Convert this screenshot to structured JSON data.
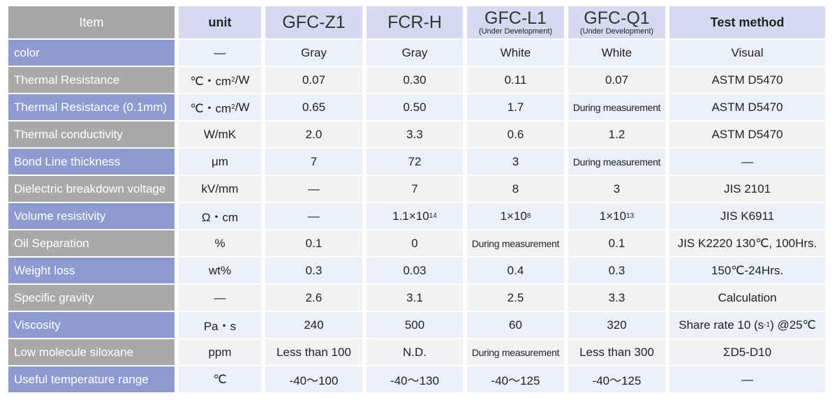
{
  "table": {
    "header": [
      {
        "text": "Item"
      },
      {
        "text": "unit"
      },
      {
        "text": "GFC-Z1"
      },
      {
        "text": "FCR-H"
      },
      {
        "text": "GFC-L1",
        "note": "(Under Development)"
      },
      {
        "text": "GFC-Q1",
        "note": "(Under Development)"
      },
      {
        "text": "Test method"
      }
    ],
    "rows": [
      [
        "color",
        "—",
        "Gray",
        "Gray",
        "White",
        "White",
        "Visual"
      ],
      [
        "Thermal Resistance",
        [
          "℃・cm",
          {
            "sup": "2"
          },
          "/W"
        ],
        "0.07",
        "0.30",
        "0.11",
        "0.07",
        "ASTM D5470"
      ],
      [
        "Thermal Resistance (0.1mm)",
        [
          "℃・cm",
          {
            "sup": "2"
          },
          "/W"
        ],
        "0.65",
        "0.50",
        "1.7",
        "During measurement",
        "ASTM D5470"
      ],
      [
        "Thermal conductivity",
        "W/mK",
        "2.0",
        "3.3",
        "0.6",
        "1.2",
        "ASTM D5470"
      ],
      [
        "Bond Line thickness",
        "μm",
        "7",
        "72",
        "3",
        "During measurement",
        "—"
      ],
      [
        "Dielectric breakdown voltage",
        "kV/mm",
        "—",
        "7",
        "8",
        "3",
        "JIS 2101"
      ],
      [
        "Volume resistivity",
        "Ω・cm",
        "—",
        [
          "1.1×10",
          {
            "sup": "14"
          }
        ],
        [
          "1×10",
          {
            "sup": "8"
          }
        ],
        [
          "1×10",
          {
            "sup": "13"
          }
        ],
        "JIS K6911"
      ],
      [
        "Oil Separation",
        "%",
        "0.1",
        "0",
        "During measurement",
        "0.1",
        "JIS K2220 130℃, 100Hrs."
      ],
      [
        "Weight loss",
        "wt%",
        "0.3",
        "0.03",
        "0.4",
        "0.3",
        "150℃-24Hrs."
      ],
      [
        "Specific gravity",
        "—",
        "2.6",
        "3.1",
        "2.5",
        "3.3",
        "Calculation"
      ],
      [
        "Viscosity",
        "Pa・s",
        "240",
        "500",
        "60",
        "320",
        [
          "Share rate 10 (s",
          {
            "sup": "-1"
          },
          ") @25℃"
        ]
      ],
      [
        "Low molecule siloxane",
        "ppm",
        "Less than 100",
        "N.D.",
        "During measurement",
        "Less than 300",
        "ΣD5-D10"
      ],
      [
        "Useful temperature range",
        "℃",
        "-40〜100",
        "-40〜130",
        "-40〜125",
        "-40〜125",
        "—"
      ]
    ]
  }
}
